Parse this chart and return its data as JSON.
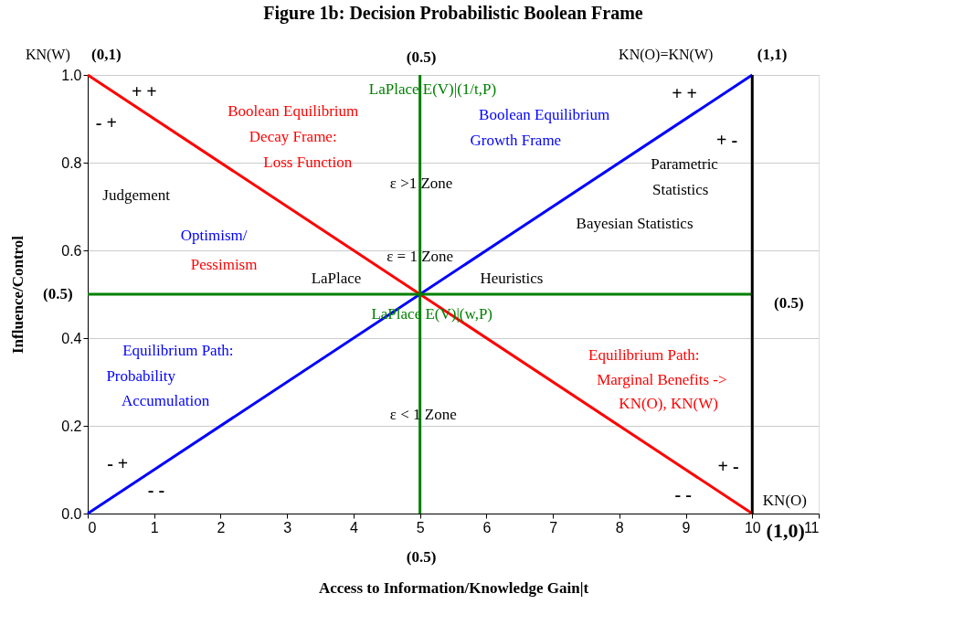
{
  "chart_data": {
    "type": "line",
    "title": "Figure 1b: Decision Probabilistic Boolean Frame",
    "xlabel": "Access to Information/Knowledge Gain|t",
    "ylabel": "Influence/Control",
    "x": [
      0,
      10
    ],
    "series": [
      {
        "color": "#ff0000",
        "values": [
          1,
          0
        ]
      },
      {
        "color": "#0000ff",
        "values": [
          0,
          1
        ]
      },
      {
        "color": "#008000",
        "values": [
          0.5,
          0.5
        ]
      }
    ],
    "xlim": [
      0,
      11
    ],
    "xticks": [
      0,
      1,
      2,
      3,
      4,
      5,
      6,
      7,
      8,
      9,
      10,
      11
    ],
    "ylim": [
      0,
      1
    ],
    "yticks": [
      {
        "value": 0,
        "label": "0.0"
      },
      {
        "value": 0.2,
        "label": "0.2"
      },
      {
        "value": 0.4,
        "label": "0.4"
      },
      {
        "value": 0.6,
        "label": "0.6"
      },
      {
        "value": 0.8,
        "label": "0.8"
      },
      {
        "value": 1,
        "label": "1.0"
      }
    ],
    "grid": "y",
    "legend": false,
    "marker": "none",
    "line_style": "solid",
    "ref_lines": [
      {
        "axis": "x",
        "value": 5,
        "color": "#008000"
      },
      {
        "axis": "x",
        "value": 10,
        "color": "#000000"
      }
    ],
    "annotations": [
      "+ +",
      "- +",
      "Boolean Equilibrium",
      "Decay Frame:",
      "Loss Function",
      "LaPlace  E(V)|(1/t,P)",
      "Boolean Equilibrium",
      "Growth Frame",
      "+ +",
      "+ -",
      "Parametric",
      "Statistics",
      "ε >1  Zone",
      "Judgement",
      "Bayesian Statistics",
      "Optimism/",
      "ε = 1 Zone",
      "Pessimism",
      "LaPlace",
      "Heuristics",
      "LaPlace  E(V)|(w,P)",
      "Equilibrium Path:",
      "Probability",
      "Accumulation",
      "Equilibrium Path:",
      "Marginal Benefits ->",
      "KN(O), KN(W)",
      "ε < 1   Zone",
      "- +",
      "- -",
      "+  -",
      "-  -",
      "KN(O)",
      "KN(W)",
      "(0,1)",
      "(0.5)",
      "KN(O)=KN(W)",
      "(1,1)",
      "(0.5)",
      "(0.5)",
      "(0.5)",
      "(1,0)"
    ]
  }
}
